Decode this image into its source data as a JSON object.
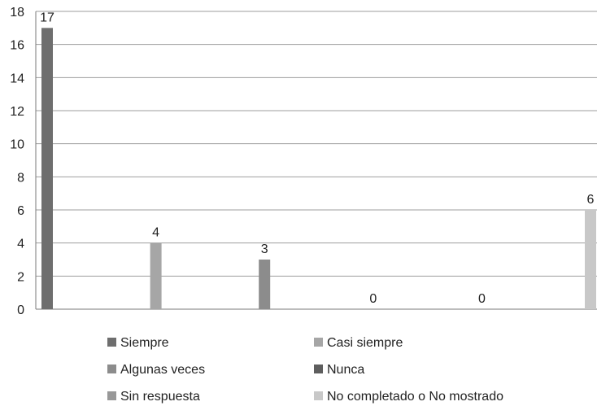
{
  "chart_data": {
    "type": "bar",
    "categories": [
      "Siempre",
      "Casi siempre",
      "Algunas veces",
      "Nunca",
      "Sin respuesta",
      "No completado o No mostrado"
    ],
    "values": [
      17,
      4,
      3,
      0,
      0,
      6
    ],
    "data_labels": [
      "17",
      "4",
      "3",
      "0",
      "0",
      "6"
    ],
    "title": "",
    "xlabel": "",
    "ylabel": "",
    "ylim": [
      0,
      18
    ],
    "yticks": [
      0,
      2,
      4,
      6,
      8,
      10,
      12,
      14,
      16,
      18
    ],
    "grid": true,
    "legend_position": "bottom",
    "colors": [
      "#6e6e6e",
      "#a6a6a6",
      "#8c8c8c",
      "#5e5e5e",
      "#989898",
      "#c8c8c8"
    ]
  }
}
